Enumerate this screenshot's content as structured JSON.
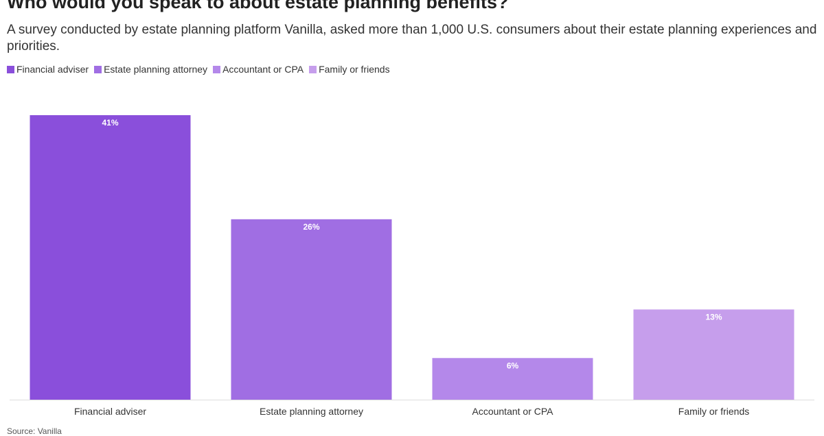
{
  "chart_data": {
    "type": "bar",
    "title": "Who would you speak to about estate planning benefits?",
    "subtitle": "A survey conducted by estate planning platform Vanilla, asked more than 1,000 U.S. consumers about their estate planning experiences and priorities.",
    "categories": [
      "Financial adviser",
      "Estate planning attorney",
      "Accountant or CPA",
      "Family or friends"
    ],
    "values": [
      41,
      26,
      6,
      13
    ],
    "value_labels": [
      "41%",
      "26%",
      "6%",
      "13%"
    ],
    "colors": [
      "#8a4fdb",
      "#a06ee3",
      "#b488ea",
      "#c69eec"
    ],
    "source": "Source: Vanilla"
  }
}
